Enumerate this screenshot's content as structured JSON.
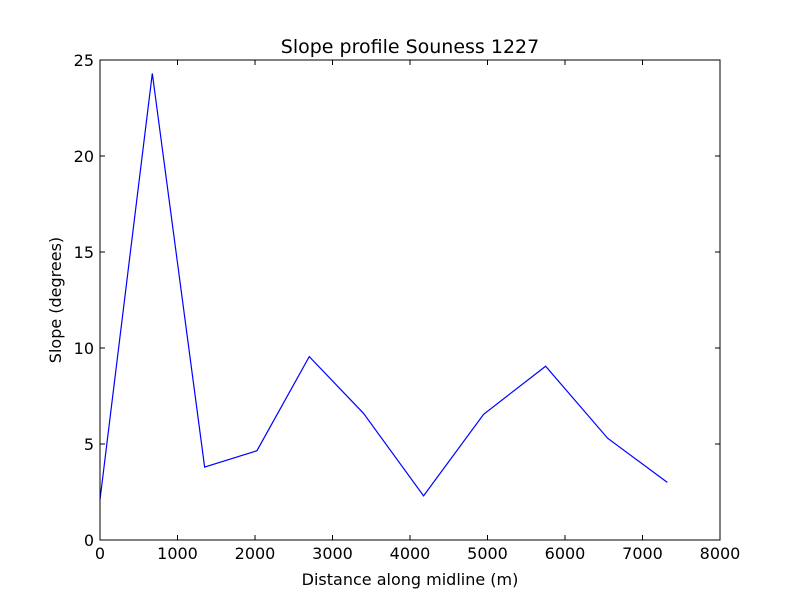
{
  "chart_data": {
    "type": "line",
    "title": "Slope profile Souness 1227",
    "xlabel": "Distance along midline (m)",
    "ylabel": "Slope (degrees)",
    "xlim": [
      0,
      8000
    ],
    "ylim": [
      0,
      25
    ],
    "xticks": [
      0,
      1000,
      2000,
      3000,
      4000,
      5000,
      6000,
      7000,
      8000
    ],
    "yticks": [
      0,
      5,
      10,
      15,
      20,
      25
    ],
    "grid": false,
    "series": [
      {
        "color": "#0000ff",
        "x": [
          0,
          675,
          1350,
          2025,
          2700,
          3400,
          4175,
          4950,
          5750,
          6550,
          7320
        ],
        "y": [
          2.1,
          24.3,
          3.8,
          4.65,
          9.55,
          6.6,
          2.3,
          6.55,
          9.05,
          5.3,
          3.0
        ]
      }
    ]
  }
}
